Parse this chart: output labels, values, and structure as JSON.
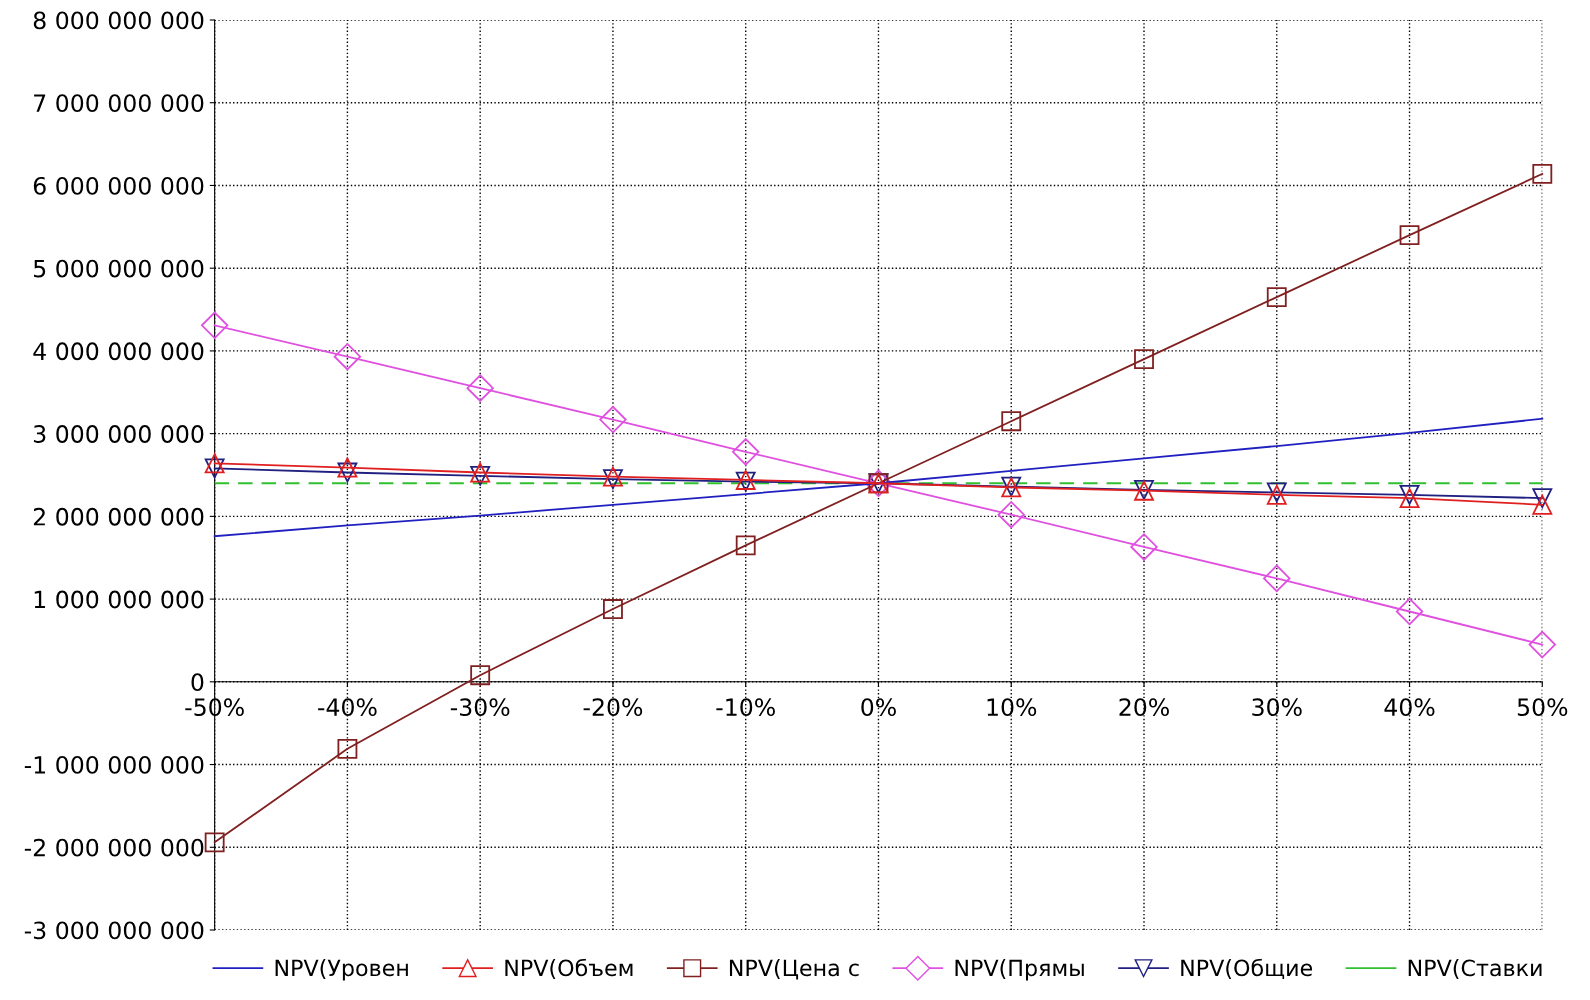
{
  "chart_data": {
    "type": "line",
    "x": [
      -50,
      -40,
      -30,
      -20,
      -10,
      0,
      10,
      20,
      30,
      40,
      50
    ],
    "xlim": [
      -50,
      50
    ],
    "xticks": [
      {
        "value": -50,
        "label": "-50%"
      },
      {
        "value": -40,
        "label": "-40%"
      },
      {
        "value": -30,
        "label": "-30%"
      },
      {
        "value": -20,
        "label": "-20%"
      },
      {
        "value": -10,
        "label": "-10%"
      },
      {
        "value": 0,
        "label": "0%"
      },
      {
        "value": 10,
        "label": "10%"
      },
      {
        "value": 20,
        "label": "20%"
      },
      {
        "value": 30,
        "label": "30%"
      },
      {
        "value": 40,
        "label": "40%"
      },
      {
        "value": 50,
        "label": "50%"
      }
    ],
    "ylim": [
      -3000000000,
      8000000000
    ],
    "yticks": [
      {
        "value": -3000000000,
        "label": "-3 000 000 000"
      },
      {
        "value": -2000000000,
        "label": "-2 000 000 000"
      },
      {
        "value": -1000000000,
        "label": "-1 000 000 000"
      },
      {
        "value": 0,
        "label": "0"
      },
      {
        "value": 1000000000,
        "label": "1 000 000 000"
      },
      {
        "value": 2000000000,
        "label": "2 000 000 000"
      },
      {
        "value": 3000000000,
        "label": "3 000 000 000"
      },
      {
        "value": 4000000000,
        "label": "4 000 000 000"
      },
      {
        "value": 5000000000,
        "label": "5 000 000 000"
      },
      {
        "value": 6000000000,
        "label": "6 000 000 000"
      },
      {
        "value": 7000000000,
        "label": "7 000 000 000"
      },
      {
        "value": 8000000000,
        "label": "8 000 000 000"
      }
    ],
    "grid": true,
    "legend": "bottom",
    "series": [
      {
        "name": "NPV(Уровен",
        "color": "#2020c0",
        "marker": "none",
        "values": [
          1760000000,
          1890000000,
          2010000000,
          2140000000,
          2270000000,
          2400000000,
          2550000000,
          2700000000,
          2850000000,
          3010000000,
          3180000000
        ]
      },
      {
        "name": "NPV(Объем",
        "color": "#e02020",
        "marker": "triangle",
        "values": [
          2640000000,
          2590000000,
          2530000000,
          2480000000,
          2440000000,
          2400000000,
          2350000000,
          2310000000,
          2260000000,
          2220000000,
          2140000000
        ]
      },
      {
        "name": "NPV(Цена с",
        "color": "#802020",
        "marker": "square",
        "values": [
          -1940000000,
          -810000000,
          80000000,
          880000000,
          1650000000,
          2400000000,
          3150000000,
          3900000000,
          4650000000,
          5400000000,
          6140000000
        ]
      },
      {
        "name": "NPV(Прямы",
        "color": "#e050e0",
        "marker": "diamond",
        "values": [
          4310000000,
          3930000000,
          3550000000,
          3170000000,
          2780000000,
          2400000000,
          2020000000,
          1630000000,
          1250000000,
          850000000,
          450000000
        ]
      },
      {
        "name": "NPV(Общие",
        "color": "#202080",
        "marker": "triangle_down",
        "values": [
          2580000000,
          2530000000,
          2490000000,
          2450000000,
          2420000000,
          2400000000,
          2360000000,
          2320000000,
          2290000000,
          2260000000,
          2220000000
        ]
      },
      {
        "name": "NPV(Ставки",
        "color": "#30c030",
        "marker": "none",
        "line_style": "dashed",
        "values": [
          2400000000,
          2400000000,
          2400000000,
          2400000000,
          2400000000,
          2400000000,
          2400000000,
          2400000000,
          2400000000,
          2400000000,
          2400000000
        ]
      }
    ]
  }
}
